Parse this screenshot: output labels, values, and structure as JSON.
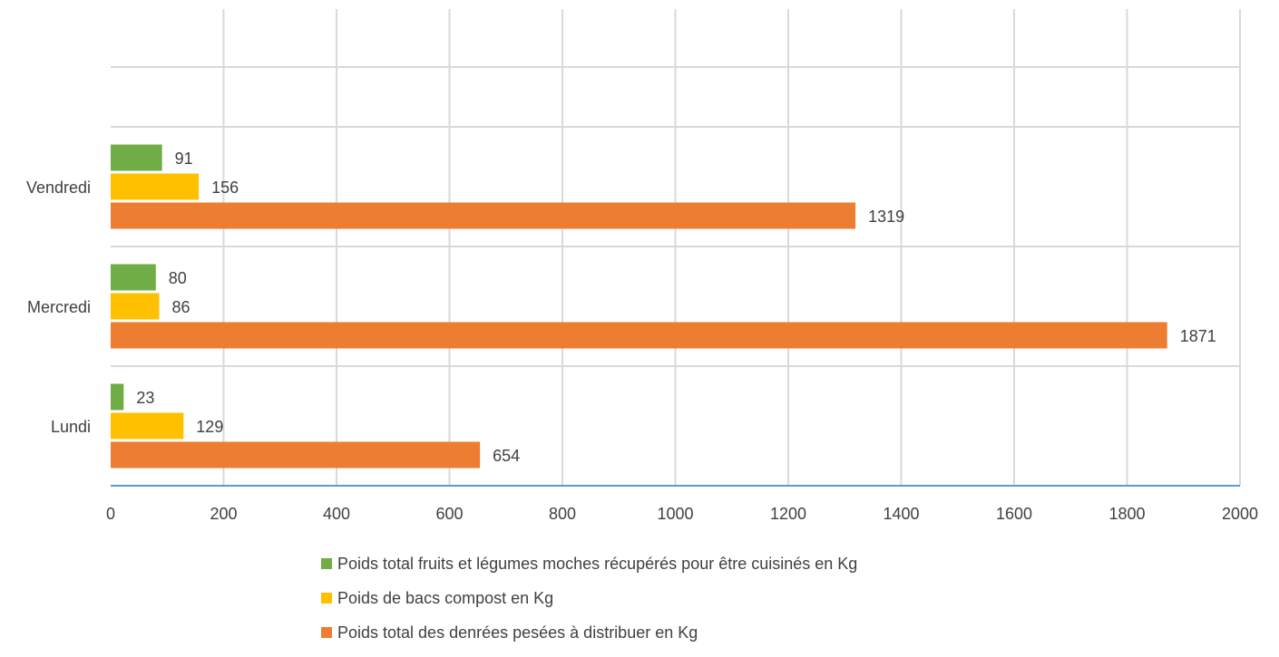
{
  "chart_data": {
    "type": "bar",
    "orientation": "horizontal",
    "categories": [
      "Lundi",
      "Mercredi",
      "Vendredi"
    ],
    "series": [
      {
        "name": "Poids total fruits et légumes moches récupérés pour être cuisinés en Kg",
        "color": "#70AD47",
        "values": [
          23,
          80,
          91
        ]
      },
      {
        "name": "Poids de bacs compost en Kg",
        "color": "#FFC000",
        "values": [
          129,
          86,
          156
        ]
      },
      {
        "name": "Poids total des denrées pesées à distribuer en Kg",
        "color": "#ED7D31",
        "values": [
          654,
          1871,
          1319
        ]
      }
    ],
    "xlim": [
      0,
      2000
    ],
    "x_ticks": [
      "0",
      "200",
      "400",
      "600",
      "800",
      "1000",
      "1200",
      "1400",
      "1600",
      "1800",
      "2000"
    ],
    "grid": true,
    "legend_position": "bottom",
    "data_labels": true,
    "axis_color": "#5B9BD5",
    "grid_color": "#D9D9D9"
  }
}
